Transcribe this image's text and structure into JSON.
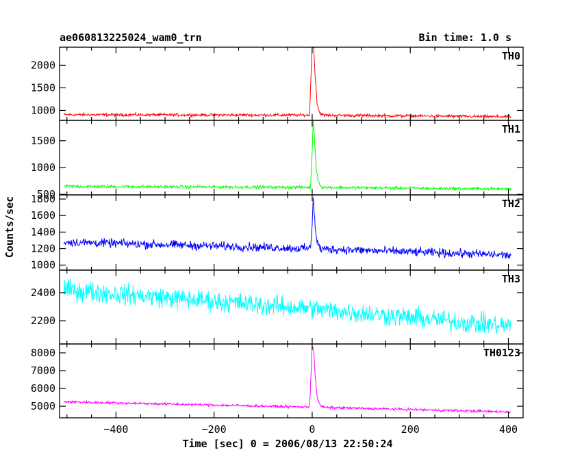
{
  "header": {
    "title": "ae060813225024_wam0_trn",
    "bin_time": "Bin time: 1.0 s"
  },
  "chart_data": {
    "type": "line",
    "title": "ae060813225024_wam0_trn",
    "xlabel": "Time [sec] 0 = 2006/08/13 22:50:24",
    "ylabel": "Counts/sec",
    "xlim": [
      -515,
      430
    ],
    "x_ticks": [
      -400,
      -200,
      0,
      200,
      400
    ],
    "x_range": [
      -506,
      405
    ],
    "panels": [
      {
        "name": "TH0",
        "color": "#ff0000",
        "ylim": [
          780,
          2400
        ],
        "y_ticks": [
          1000,
          1500,
          2000
        ],
        "baseline": [
          [
            -506,
            905
          ],
          [
            0,
            895
          ],
          [
            405,
            860
          ]
        ],
        "noise": 25,
        "peak": [
          [
            -5,
            1000
          ],
          [
            -2,
            1900
          ],
          [
            0,
            2500
          ],
          [
            3,
            2400
          ],
          [
            6,
            1800
          ],
          [
            10,
            1150
          ],
          [
            15,
            950
          ],
          [
            22,
            905
          ]
        ]
      },
      {
        "name": "TH1",
        "color": "#00ff00",
        "ylim": [
          490,
          1880
        ],
        "y_ticks": [
          500,
          1000,
          1500
        ],
        "baseline": [
          [
            -506,
            650
          ],
          [
            0,
            630
          ],
          [
            405,
            600
          ]
        ],
        "noise": 22,
        "peak": [
          [
            -3,
            700
          ],
          [
            0,
            1300
          ],
          [
            2,
            1900
          ],
          [
            5,
            1500
          ],
          [
            8,
            1000
          ],
          [
            12,
            760
          ],
          [
            18,
            660
          ]
        ]
      },
      {
        "name": "TH2",
        "color": "#0000ff",
        "ylim": [
          940,
          1850
        ],
        "y_ticks": [
          1000,
          1200,
          1400,
          1600,
          1800
        ],
        "baseline": [
          [
            -506,
            1280
          ],
          [
            0,
            1200
          ],
          [
            405,
            1120
          ]
        ],
        "noise": 40,
        "peak": [
          [
            -3,
            1250
          ],
          [
            0,
            1500
          ],
          [
            2,
            1850
          ],
          [
            5,
            1550
          ],
          [
            9,
            1300
          ],
          [
            15,
            1220
          ]
        ]
      },
      {
        "name": "TH3",
        "color": "#00ffff",
        "ylim": [
          2035,
          2560
        ],
        "y_ticks": [
          2200,
          2400
        ],
        "baseline": [
          [
            -506,
            2420
          ],
          [
            0,
            2285
          ],
          [
            405,
            2160
          ]
        ],
        "noise": 55,
        "peak": []
      },
      {
        "name": "TH0123",
        "color": "#ff00ff",
        "ylim": [
          4350,
          8500
        ],
        "y_ticks": [
          5000,
          6000,
          7000,
          8000
        ],
        "baseline": [
          [
            -506,
            5250
          ],
          [
            0,
            4950
          ],
          [
            405,
            4680
          ]
        ],
        "noise": 55,
        "peak": [
          [
            -5,
            5200
          ],
          [
            -2,
            7000
          ],
          [
            0,
            8400
          ],
          [
            3,
            8200
          ],
          [
            6,
            6800
          ],
          [
            10,
            5500
          ],
          [
            16,
            5050
          ],
          [
            24,
            4950
          ]
        ]
      }
    ]
  }
}
